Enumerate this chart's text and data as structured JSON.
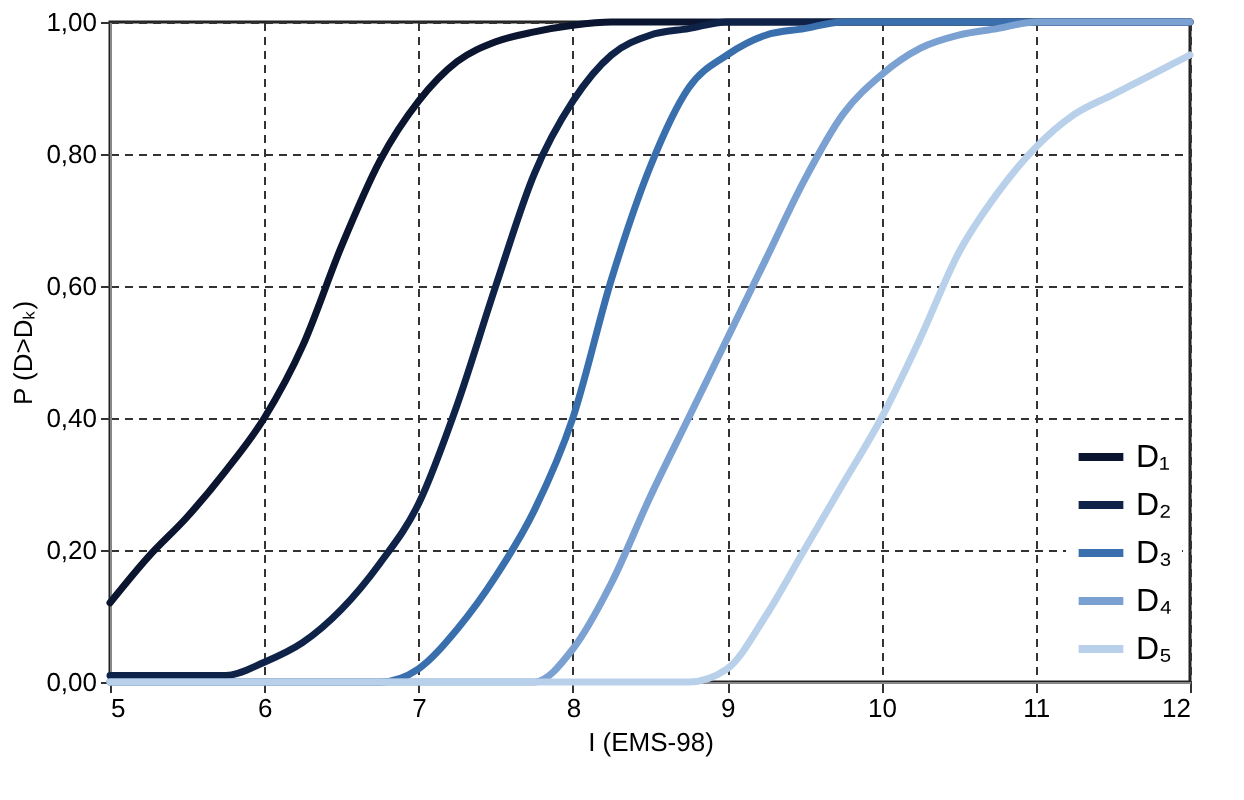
{
  "chart_data": {
    "type": "line",
    "xlabel": "I (EMS-98)",
    "ylabel": "P (D>Dₖ)",
    "x": [
      5,
      5.25,
      5.5,
      5.75,
      6,
      6.25,
      6.5,
      6.75,
      7,
      7.25,
      7.5,
      7.75,
      8,
      8.25,
      8.5,
      8.75,
      9,
      9.25,
      9.5,
      9.75,
      10,
      10.25,
      10.5,
      10.75,
      11,
      11.25,
      11.5,
      11.75,
      12
    ],
    "series": [
      {
        "name": "D₁",
        "color": "#0b1530",
        "values": [
          0.12,
          0.19,
          0.25,
          0.32,
          0.4,
          0.51,
          0.66,
          0.79,
          0.88,
          0.94,
          0.97,
          0.985,
          0.995,
          1.0,
          1.0,
          1.0,
          1.0,
          1.0,
          1.0,
          1.0,
          1.0,
          1.0,
          1.0,
          1.0,
          1.0,
          1.0,
          1.0,
          1.0,
          1.0
        ]
      },
      {
        "name": "D₂",
        "color": "#0f2248",
        "values": [
          0.01,
          0.01,
          0.01,
          0.01,
          0.03,
          0.06,
          0.11,
          0.18,
          0.27,
          0.42,
          0.6,
          0.77,
          0.88,
          0.95,
          0.98,
          0.99,
          1.0,
          1.0,
          1.0,
          1.0,
          1.0,
          1.0,
          1.0,
          1.0,
          1.0,
          1.0,
          1.0,
          1.0,
          1.0
        ]
      },
      {
        "name": "D₃",
        "color": "#3a6fae",
        "values": [
          0.0,
          0.0,
          0.0,
          0.0,
          0.0,
          0.0,
          0.0,
          0.0,
          0.02,
          0.08,
          0.16,
          0.26,
          0.4,
          0.61,
          0.78,
          0.9,
          0.95,
          0.98,
          0.99,
          1.0,
          1.0,
          1.0,
          1.0,
          1.0,
          1.0,
          1.0,
          1.0,
          1.0,
          1.0
        ]
      },
      {
        "name": "D₄",
        "color": "#7aa1d2",
        "values": [
          0.0,
          0.0,
          0.0,
          0.0,
          0.0,
          0.0,
          0.0,
          0.0,
          0.0,
          0.0,
          0.0,
          0.0,
          0.05,
          0.15,
          0.28,
          0.4,
          0.52,
          0.64,
          0.76,
          0.86,
          0.92,
          0.96,
          0.98,
          0.99,
          1.0,
          1.0,
          1.0,
          1.0,
          1.0
        ]
      },
      {
        "name": "D₅",
        "color": "#b9d0ea",
        "values": [
          0.0,
          0.0,
          0.0,
          0.0,
          0.0,
          0.0,
          0.0,
          0.0,
          0.0,
          0.0,
          0.0,
          0.0,
          0.0,
          0.0,
          0.0,
          0.0,
          0.02,
          0.1,
          0.2,
          0.3,
          0.4,
          0.52,
          0.65,
          0.74,
          0.81,
          0.86,
          0.89,
          0.92,
          0.95
        ]
      }
    ],
    "xlim": [
      5,
      12
    ],
    "xticks": [
      5,
      6,
      7,
      8,
      9,
      10,
      11,
      12
    ],
    "ylim": [
      0,
      1
    ],
    "yticks": [
      {
        "value": 0,
        "label": "0,00"
      },
      {
        "value": 0.2,
        "label": "0,20"
      },
      {
        "value": 0.4,
        "label": "0,40"
      },
      {
        "value": 0.6,
        "label": "0,60"
      },
      {
        "value": 0.8,
        "label": "0,80"
      },
      {
        "value": 1,
        "label": "1,00"
      }
    ],
    "grid": true,
    "legend": "bottom right",
    "marker": "none",
    "line_style": "solid"
  }
}
